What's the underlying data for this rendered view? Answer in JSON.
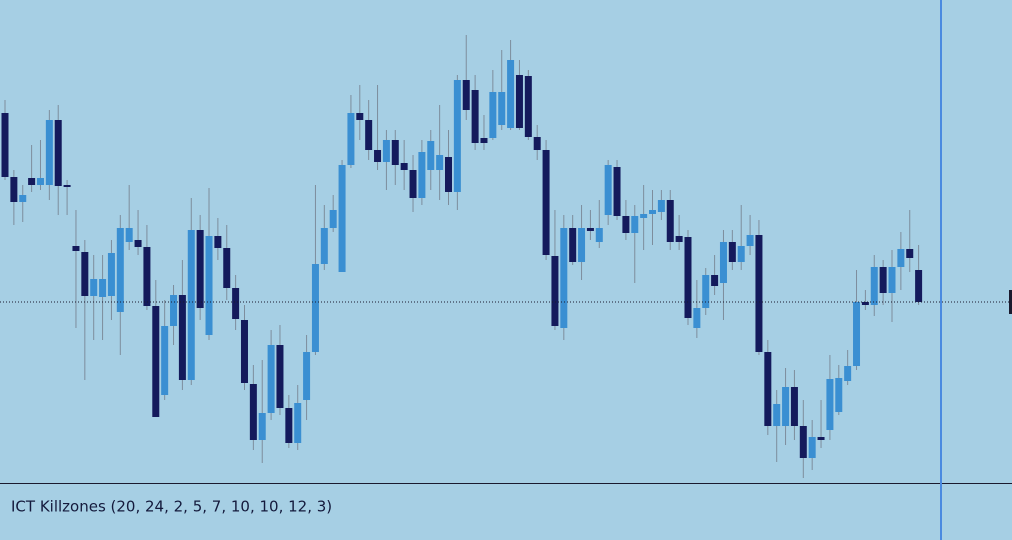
{
  "chart_data": {
    "type": "candlestick",
    "ylim": [
      0,
      483
    ],
    "up_color": "#3a8fd2",
    "down_color": "#141a5c",
    "wick_color": "#7d8d9c",
    "price_line": 181,
    "open": [
      370,
      306,
      281,
      305,
      298,
      298,
      363,
      298,
      237,
      231,
      187,
      186,
      187,
      171,
      241,
      243,
      236,
      177,
      88,
      157,
      188,
      103,
      253,
      148,
      247,
      235,
      195,
      163,
      99,
      43,
      70,
      138,
      75,
      40,
      83,
      131,
      219,
      255,
      211,
      318,
      370,
      363,
      333,
      321,
      343,
      320,
      313,
      285,
      313,
      313,
      326,
      291,
      403,
      393,
      345,
      345,
      358,
      355,
      408,
      407,
      346,
      333,
      227,
      155,
      255,
      221,
      255,
      241,
      268,
      316,
      267,
      250,
      265,
      269,
      271,
      283,
      247,
      246,
      155,
      175,
      208,
      200,
      241,
      221,
      237,
      248,
      131,
      57,
      57,
      96,
      57,
      25,
      46,
      53,
      71,
      102,
      117,
      181,
      178,
      216,
      190,
      216,
      234,
      213
    ],
    "high": [
      383,
      313,
      298,
      338,
      343,
      373,
      378,
      303,
      273,
      243,
      228,
      228,
      243,
      268,
      298,
      273,
      258,
      203,
      183,
      198,
      223,
      285,
      268,
      295,
      265,
      258,
      208,
      178,
      118,
      123,
      153,
      158,
      88,
      98,
      148,
      298,
      278,
      288,
      323,
      388,
      398,
      383,
      398,
      353,
      353,
      343,
      328,
      343,
      353,
      378,
      353,
      408,
      448,
      408,
      368,
      413,
      433,
      443,
      423,
      413,
      358,
      343,
      273,
      268,
      268,
      278,
      273,
      283,
      323,
      323,
      283,
      278,
      298,
      293,
      293,
      293,
      268,
      253,
      203,
      215,
      228,
      253,
      253,
      278,
      268,
      263,
      143,
      93,
      115,
      113,
      83,
      63,
      83,
      128,
      118,
      133,
      213,
      193,
      228,
      223,
      233,
      251,
      273,
      238
    ],
    "low": [
      303,
      258,
      261,
      291,
      293,
      283,
      268,
      268,
      155,
      103,
      143,
      143,
      163,
      128,
      233,
      228,
      173,
      66,
      83,
      138,
      93,
      98,
      163,
      143,
      223,
      183,
      153,
      93,
      33,
      20,
      63,
      68,
      35,
      33,
      63,
      128,
      213,
      251,
      211,
      315,
      343,
      323,
      313,
      293,
      298,
      293,
      271,
      278,
      293,
      283,
      278,
      273,
      363,
      333,
      333,
      343,
      353,
      353,
      353,
      343,
      323,
      223,
      153,
      143,
      218,
      203,
      243,
      235,
      258,
      263,
      243,
      200,
      233,
      238,
      263,
      233,
      233,
      158,
      145,
      168,
      188,
      163,
      213,
      213,
      228,
      128,
      48,
      21,
      38,
      43,
      5,
      13,
      35,
      43,
      68,
      98,
      113,
      173,
      167,
      178,
      161,
      193,
      211,
      178
    ],
    "close": [
      306,
      281,
      288,
      298,
      305,
      363,
      297,
      296,
      232,
      187,
      204,
      204,
      230,
      255,
      255,
      236,
      177,
      66,
      157,
      188,
      103,
      253,
      175,
      247,
      235,
      195,
      164,
      100,
      43,
      70,
      138,
      75,
      40,
      80,
      131,
      219,
      255,
      273,
      318,
      370,
      363,
      333,
      321,
      343,
      318,
      313,
      285,
      331,
      342,
      328,
      291,
      403,
      373,
      340,
      340,
      391,
      391,
      423,
      355,
      346,
      333,
      228,
      157,
      255,
      221,
      255,
      252,
      255,
      318,
      267,
      250,
      267,
      269,
      273,
      283,
      241,
      241,
      165,
      175,
      208,
      197,
      241,
      221,
      237,
      248,
      131,
      57,
      79,
      96,
      57,
      25,
      46,
      43,
      104,
      105,
      117,
      181,
      178,
      216,
      190,
      216,
      234,
      225,
      181
    ]
  },
  "indicator_panel": {
    "label": "ICT Killzones (20, 24, 2, 5, 7, 10, 10, 12, 3)"
  }
}
